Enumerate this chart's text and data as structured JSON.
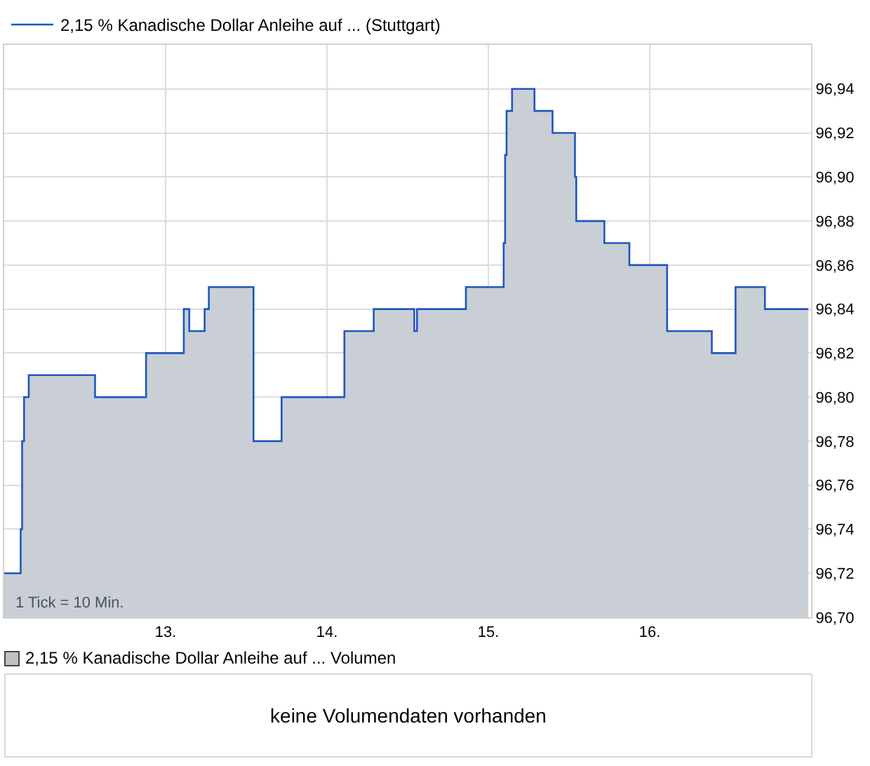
{
  "chart_data": [
    {
      "type": "step",
      "x": [
        12.0,
        12.102,
        12.111,
        12.123,
        12.152,
        12.563,
        12.879,
        13.113,
        13.147,
        13.242,
        13.268,
        13.545,
        13.719,
        14.108,
        14.29,
        14.541,
        14.558,
        14.861,
        15.095,
        15.104,
        15.113,
        15.147,
        15.286,
        15.398,
        15.537,
        15.545,
        15.719,
        15.874,
        16.108,
        16.385,
        16.532,
        16.714,
        16.983
      ],
      "series": [
        {
          "type": "area",
          "color": "#c9cfd4",
          "values": [
            96.72,
            96.74,
            96.78,
            96.8,
            96.81,
            96.8,
            96.82,
            96.84,
            96.83,
            96.84,
            96.85,
            96.78,
            96.8,
            96.83,
            96.84,
            96.83,
            96.84,
            96.85,
            96.87,
            96.91,
            96.93,
            96.94,
            96.93,
            96.92,
            96.9,
            96.88,
            96.87,
            96.86,
            96.83,
            96.82,
            96.85,
            96.84,
            96.84
          ]
        },
        {
          "name": "2,15 % Kanadische Dollar Anleihe auf ... (Stuttgart)",
          "color": "#1f56c0",
          "values": [
            96.72,
            96.74,
            96.78,
            96.8,
            96.81,
            96.8,
            96.82,
            96.84,
            96.83,
            96.84,
            96.85,
            96.78,
            96.8,
            96.83,
            96.84,
            96.83,
            96.84,
            96.85,
            96.87,
            96.91,
            96.93,
            96.94,
            96.93,
            96.92,
            96.9,
            96.88,
            96.87,
            96.86,
            96.83,
            96.82,
            96.85,
            96.84,
            96.84
          ]
        }
      ],
      "xlim": [
        12.0,
        17.0
      ],
      "xticks": [
        {
          "value": 13,
          "label": "13."
        },
        {
          "value": 14,
          "label": "14."
        },
        {
          "value": 15,
          "label": "15."
        },
        {
          "value": 16,
          "label": "16."
        }
      ],
      "ylim": [
        96.7,
        96.96
      ],
      "yticks": [
        {
          "value": 96.7,
          "label": "96,70"
        },
        {
          "value": 96.72,
          "label": "96,72"
        },
        {
          "value": 96.74,
          "label": "96,74"
        },
        {
          "value": 96.76,
          "label": "96,76"
        },
        {
          "value": 96.78,
          "label": "96,78"
        },
        {
          "value": 96.8,
          "label": "96,80"
        },
        {
          "value": 96.82,
          "label": "96,82"
        },
        {
          "value": 96.84,
          "label": "96,84"
        },
        {
          "value": 96.86,
          "label": "96,86"
        },
        {
          "value": 96.88,
          "label": "96,88"
        },
        {
          "value": 96.9,
          "label": "96,90"
        },
        {
          "value": 96.92,
          "label": "96,92"
        },
        {
          "value": 96.94,
          "label": "96,94"
        }
      ],
      "grid": true,
      "legend": "top left",
      "annotations": [
        "1 Tick = 10 Min."
      ]
    },
    {
      "type": "other",
      "title": "2,15 % Kanadische Dollar Anleihe auf ... Volumen",
      "annotations": [
        "keine Volumendaten vorhanden"
      ]
    }
  ]
}
